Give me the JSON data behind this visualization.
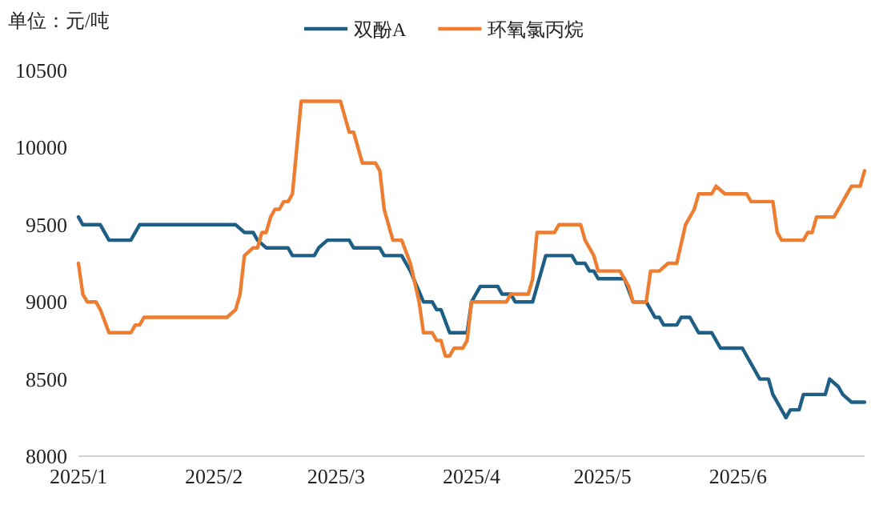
{
  "chart_data": {
    "type": "line",
    "annotations": [
      "单位：元/吨"
    ],
    "legend": "top",
    "grid": false,
    "xlim": [
      "2025-01-01",
      "2025-06-30"
    ],
    "xticks": [
      {
        "value": "2025-01-01",
        "label": "2025/1"
      },
      {
        "value": "2025-02-01",
        "label": "2025/2"
      },
      {
        "value": "2025-03-01",
        "label": "2025/3"
      },
      {
        "value": "2025-04-01",
        "label": "2025/4"
      },
      {
        "value": "2025-05-01",
        "label": "2025/5"
      },
      {
        "value": "2025-06-01",
        "label": "2025/6"
      }
    ],
    "ylim": [
      8000,
      10500
    ],
    "yticks": [
      8000,
      8500,
      9000,
      9500,
      10000,
      10500
    ],
    "series": [
      {
        "name": "双酚A",
        "color": "#1f5f85",
        "x": [
          "2025-01-01",
          "2025-01-02",
          "2025-01-06",
          "2025-01-08",
          "2025-01-13",
          "2025-01-15",
          "2025-02-06",
          "2025-02-08",
          "2025-02-10",
          "2025-02-11",
          "2025-02-13",
          "2025-02-18",
          "2025-02-19",
          "2025-02-24",
          "2025-02-25",
          "2025-02-27",
          "2025-03-04",
          "2025-03-05",
          "2025-03-11",
          "2025-03-12",
          "2025-03-16",
          "2025-03-18",
          "2025-03-21",
          "2025-03-23",
          "2025-03-24",
          "2025-03-25",
          "2025-03-27",
          "2025-03-31",
          "2025-04-01",
          "2025-04-03",
          "2025-04-07",
          "2025-04-08",
          "2025-04-10",
          "2025-04-11",
          "2025-04-15",
          "2025-04-16",
          "2025-04-18",
          "2025-04-24",
          "2025-04-25",
          "2025-04-27",
          "2025-04-28",
          "2025-04-29",
          "2025-04-30",
          "2025-05-06",
          "2025-05-08",
          "2025-05-11",
          "2025-05-13",
          "2025-05-14",
          "2025-05-15",
          "2025-05-18",
          "2025-05-19",
          "2025-05-21",
          "2025-05-23",
          "2025-05-26",
          "2025-05-27",
          "2025-05-28",
          "2025-06-02",
          "2025-06-06",
          "2025-06-08",
          "2025-06-09",
          "2025-06-12",
          "2025-06-13",
          "2025-06-15",
          "2025-06-16",
          "2025-06-21",
          "2025-06-22",
          "2025-06-24",
          "2025-06-25",
          "2025-06-27",
          "2025-06-30"
        ],
        "values": [
          9550,
          9500,
          9500,
          9400,
          9400,
          9500,
          9500,
          9450,
          9450,
          9400,
          9350,
          9350,
          9300,
          9300,
          9350,
          9400,
          9400,
          9350,
          9350,
          9300,
          9300,
          9200,
          9000,
          9000,
          8950,
          8950,
          8800,
          8800,
          9000,
          9100,
          9100,
          9050,
          9050,
          9000,
          9000,
          9100,
          9300,
          9300,
          9250,
          9250,
          9200,
          9200,
          9150,
          9150,
          9000,
          9000,
          8900,
          8900,
          8850,
          8850,
          8900,
          8900,
          8800,
          8800,
          8750,
          8700,
          8700,
          8500,
          8500,
          8400,
          8250,
          8300,
          8300,
          8400,
          8400,
          8500,
          8450,
          8400,
          8350,
          8350
        ]
      },
      {
        "name": "环氧氯丙烷",
        "color": "#ed7d31",
        "x": [
          "2025-01-01",
          "2025-01-02",
          "2025-01-03",
          "2025-01-05",
          "2025-01-06",
          "2025-01-08",
          "2025-01-13",
          "2025-01-14",
          "2025-01-15",
          "2025-01-16",
          "2025-02-04",
          "2025-02-06",
          "2025-02-07",
          "2025-02-08",
          "2025-02-10",
          "2025-02-11",
          "2025-02-12",
          "2025-02-13",
          "2025-02-14",
          "2025-02-15",
          "2025-02-16",
          "2025-02-17",
          "2025-02-18",
          "2025-02-19",
          "2025-02-21",
          "2025-03-02",
          "2025-03-04",
          "2025-03-05",
          "2025-03-07",
          "2025-03-10",
          "2025-03-11",
          "2025-03-12",
          "2025-03-14",
          "2025-03-16",
          "2025-03-18",
          "2025-03-20",
          "2025-03-21",
          "2025-03-23",
          "2025-03-24",
          "2025-03-25",
          "2025-03-26",
          "2025-03-27",
          "2025-03-28",
          "2025-03-30",
          "2025-03-31",
          "2025-04-01",
          "2025-04-09",
          "2025-04-10",
          "2025-04-14",
          "2025-04-15",
          "2025-04-16",
          "2025-04-20",
          "2025-04-21",
          "2025-04-26",
          "2025-04-27",
          "2025-04-29",
          "2025-04-30",
          "2025-05-05",
          "2025-05-07",
          "2025-05-08",
          "2025-05-11",
          "2025-05-12",
          "2025-05-14",
          "2025-05-16",
          "2025-05-18",
          "2025-05-20",
          "2025-05-22",
          "2025-05-23",
          "2025-05-26",
          "2025-05-27",
          "2025-05-29",
          "2025-06-03",
          "2025-06-04",
          "2025-06-09",
          "2025-06-10",
          "2025-06-11",
          "2025-06-16",
          "2025-06-17",
          "2025-06-18",
          "2025-06-19",
          "2025-06-23",
          "2025-06-27",
          "2025-06-29",
          "2025-06-30"
        ],
        "values": [
          9250,
          9050,
          9000,
          9000,
          8950,
          8800,
          8800,
          8850,
          8850,
          8900,
          8900,
          8950,
          9050,
          9300,
          9350,
          9350,
          9450,
          9450,
          9550,
          9600,
          9600,
          9650,
          9650,
          9700,
          10300,
          10300,
          10100,
          10100,
          9900,
          9900,
          9850,
          9600,
          9400,
          9400,
          9250,
          9000,
          8800,
          8800,
          8750,
          8750,
          8650,
          8650,
          8700,
          8700,
          8750,
          9000,
          9000,
          9050,
          9050,
          9150,
          9450,
          9450,
          9500,
          9500,
          9400,
          9300,
          9200,
          9200,
          9100,
          9000,
          9000,
          9200,
          9200,
          9250,
          9250,
          9500,
          9600,
          9700,
          9700,
          9750,
          9700,
          9700,
          9650,
          9650,
          9450,
          9400,
          9400,
          9450,
          9450,
          9550,
          9550,
          9750,
          9750,
          9850
        ]
      }
    ]
  }
}
